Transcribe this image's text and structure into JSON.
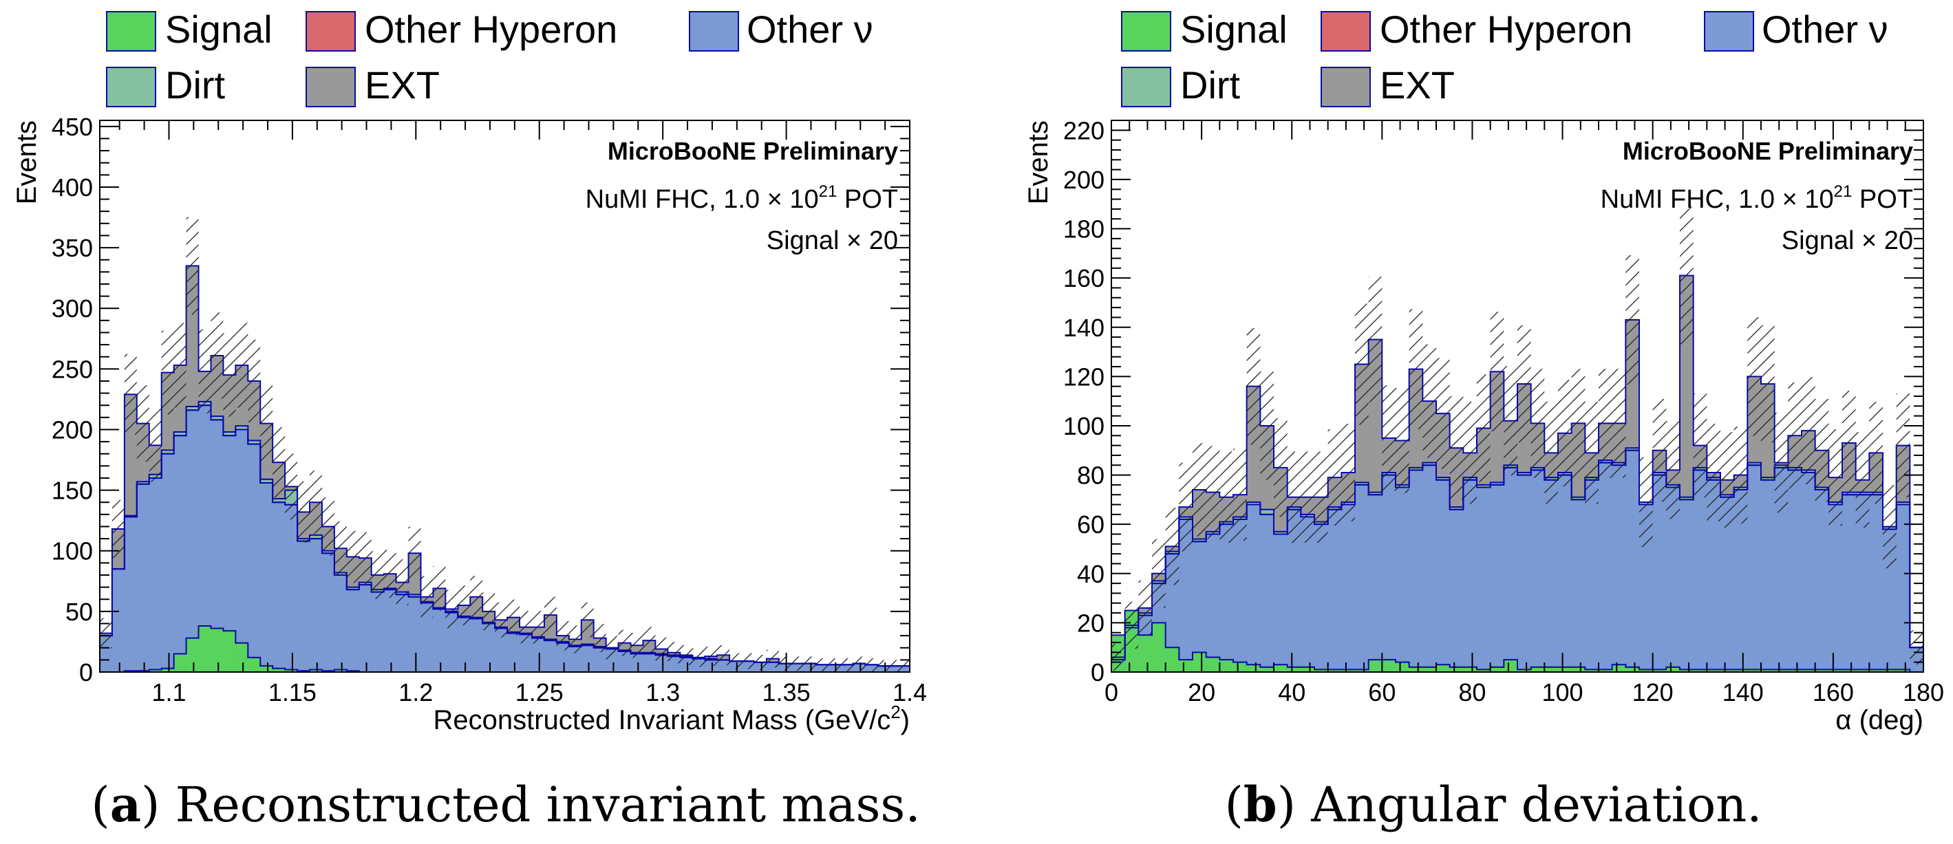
{
  "colors": {
    "signal": "#58d35c",
    "other_hyperon": "#d9696c",
    "other_nu": "#7b99d2",
    "dirt": "#86c0a2",
    "ext": "#999999",
    "outline": "#0a0aa8",
    "hatch": "#222222"
  },
  "chart_data": [
    {
      "id": "a",
      "type": "bar",
      "stacked": true,
      "title": "",
      "caption_letter": "a",
      "caption_text": "Reconstructed invariant mass.",
      "experiment_label": "MicroBooNE Preliminary",
      "beam_label_prefix": "NuMI FHC, 1.0 × 10",
      "beam_label_exp": "21",
      "beam_label_suffix": " POT",
      "scale_label": "Signal × 20",
      "xlabel_prefix": "Reconstructed Invariant Mass (GeV/c",
      "xlabel_exp": "2",
      "xlabel_suffix": ")",
      "ylabel": "Events",
      "xlim": [
        1.072,
        1.4
      ],
      "ylim": [
        0,
        455
      ],
      "x_ticks": [
        1.1,
        1.15,
        1.2,
        1.25,
        1.3,
        1.35,
        1.4
      ],
      "x_tick_labels": [
        "1.1",
        "1.15",
        "1.2",
        "1.25",
        "1.3",
        "1.35",
        "1.4"
      ],
      "y_ticks": [
        0,
        50,
        100,
        150,
        200,
        250,
        300,
        350,
        400,
        450
      ],
      "y_tick_labels": [
        "0",
        "50",
        "100",
        "150",
        "200",
        "250",
        "300",
        "350",
        "400",
        "450"
      ],
      "bin_edge_start": 1.072,
      "bin_width": 0.005,
      "legend": [
        "Signal",
        "Other Hyperon",
        "Other ν",
        "Dirt",
        "EXT"
      ],
      "series": [
        {
          "name": "Signal",
          "values": [
            0,
            0,
            1,
            1,
            2,
            3,
            15,
            28,
            38,
            36,
            34,
            24,
            12,
            5,
            3,
            2,
            1,
            2,
            1,
            2,
            1,
            0,
            0,
            0,
            0,
            0,
            0,
            0,
            0,
            0,
            0,
            0,
            0,
            0,
            0,
            0,
            0,
            0,
            0,
            0,
            0,
            0,
            0,
            0,
            0,
            0,
            0,
            0,
            0,
            0,
            0,
            0,
            0,
            0,
            0,
            0,
            0,
            0,
            0,
            0,
            0,
            0,
            0,
            0,
            0,
            0
          ]
        },
        {
          "name": "Other Hyperon",
          "values": [
            0,
            0,
            0,
            0,
            0,
            0,
            0,
            0,
            0,
            0,
            0,
            0,
            0,
            0,
            0,
            0,
            0,
            0,
            0,
            0,
            0,
            0,
            0,
            0,
            0,
            0,
            0,
            0,
            0,
            0,
            0,
            0,
            0,
            0,
            0,
            0,
            0,
            0,
            0,
            0,
            0,
            0,
            0,
            0,
            0,
            0,
            0,
            0,
            0,
            0,
            0,
            0,
            0,
            0,
            0,
            0,
            0,
            0,
            0,
            0,
            0,
            0,
            0,
            0,
            0,
            0
          ]
        },
        {
          "name": "Other ν",
          "values": [
            30,
            85,
            128,
            155,
            160,
            180,
            195,
            216,
            220,
            208,
            195,
            200,
            188,
            156,
            140,
            138,
            108,
            110,
            98,
            80,
            68,
            72,
            66,
            68,
            64,
            62,
            57,
            52,
            49,
            45,
            44,
            40,
            36,
            32,
            31,
            28,
            26,
            24,
            21,
            22,
            20,
            19,
            17,
            15,
            15,
            14,
            13,
            12,
            11,
            10,
            10,
            9,
            9,
            8,
            8,
            7,
            7,
            7,
            6,
            6,
            6,
            7,
            6,
            5,
            5,
            5
          ]
        },
        {
          "name": "Dirt",
          "values": [
            0,
            0,
            1,
            2,
            3,
            3,
            3,
            3,
            3,
            3,
            3,
            3,
            3,
            3,
            3,
            12,
            2,
            3,
            2,
            2,
            2,
            2,
            2,
            1,
            2,
            2,
            1,
            1,
            1,
            1,
            1,
            1,
            1,
            1,
            1,
            1,
            1,
            1,
            1,
            1,
            1,
            1,
            1,
            1,
            1,
            1,
            1,
            1,
            1,
            1,
            0,
            0,
            0,
            0,
            0,
            0,
            0,
            0,
            0,
            0,
            0,
            0,
            0,
            0,
            0,
            0
          ]
        },
        {
          "name": "EXT",
          "values": [
            2,
            33,
            100,
            48,
            24,
            64,
            55,
            116,
            25,
            50,
            47,
            50,
            49,
            46,
            30,
            3,
            22,
            27,
            20,
            20,
            25,
            20,
            12,
            12,
            8,
            34,
            4,
            16,
            2,
            9,
            17,
            9,
            6,
            12,
            5,
            8,
            20,
            5,
            5,
            20,
            7,
            0,
            6,
            6,
            10,
            4,
            2,
            1,
            0,
            2,
            4,
            0,
            0,
            0,
            3,
            0,
            0,
            0,
            0,
            0,
            0,
            0,
            0,
            0,
            0,
            0
          ]
        }
      ]
    },
    {
      "id": "b",
      "type": "bar",
      "stacked": true,
      "title": "",
      "caption_letter": "b",
      "caption_text": "Angular deviation.",
      "experiment_label": "MicroBooNE Preliminary",
      "beam_label_prefix": "NuMI FHC, 1.0 × 10",
      "beam_label_exp": "21",
      "beam_label_suffix": " POT",
      "scale_label": "Signal × 20",
      "xlabel": "α (deg)",
      "ylabel": "Events",
      "xlim": [
        0,
        180
      ],
      "ylim": [
        0,
        224
      ],
      "x_ticks": [
        0,
        20,
        40,
        60,
        80,
        100,
        120,
        140,
        160,
        180
      ],
      "x_tick_labels": [
        "0",
        "20",
        "40",
        "60",
        "80",
        "100",
        "120",
        "140",
        "160",
        "180"
      ],
      "y_ticks": [
        0,
        20,
        40,
        60,
        80,
        100,
        120,
        140,
        160,
        180,
        200,
        220
      ],
      "y_tick_labels": [
        "0",
        "20",
        "40",
        "60",
        "80",
        "100",
        "120",
        "140",
        "160",
        "180",
        "200",
        "220"
      ],
      "bin_edge_start": 0,
      "bin_width": 3,
      "legend": [
        "Signal",
        "Other Hyperon",
        "Other ν",
        "Dirt",
        "EXT"
      ],
      "series": [
        {
          "name": "Signal",
          "values": [
            15,
            25,
            15,
            20,
            10,
            5,
            8,
            6,
            5,
            4,
            3,
            2,
            3,
            2,
            2,
            1,
            1,
            1,
            1,
            5,
            5,
            4,
            2,
            2,
            3,
            2,
            2,
            1,
            2,
            5,
            1,
            2,
            2,
            2,
            2,
            1,
            1,
            3,
            2,
            1,
            1,
            2,
            1,
            1,
            1,
            1,
            1,
            1,
            1,
            1,
            1,
            1,
            1,
            1,
            1,
            1,
            1,
            1,
            1,
            0
          ]
        },
        {
          "name": "Other Hyperon",
          "values": [
            0,
            0,
            0,
            0,
            0,
            0,
            0,
            0,
            0,
            0,
            0,
            0,
            0,
            0,
            0,
            0,
            0,
            0,
            0,
            0,
            0,
            0,
            0,
            0,
            0,
            0,
            0,
            0,
            0,
            0,
            0,
            0,
            0,
            0,
            0,
            0,
            0,
            0,
            0,
            0,
            0,
            0,
            0,
            0,
            0,
            0,
            0,
            0,
            0,
            0,
            0,
            0,
            0,
            0,
            0,
            0,
            0,
            0,
            0,
            0
          ]
        },
        {
          "name": "Other ν",
          "values": [
            5,
            18,
            23,
            36,
            48,
            62,
            53,
            56,
            60,
            62,
            68,
            64,
            56,
            66,
            63,
            60,
            66,
            68,
            76,
            72,
            80,
            75,
            82,
            84,
            78,
            66,
            78,
            75,
            76,
            83,
            80,
            82,
            78,
            80,
            70,
            78,
            85,
            84,
            90,
            68,
            80,
            75,
            70,
            82,
            78,
            71,
            74,
            84,
            78,
            83,
            82,
            81,
            74,
            68,
            72,
            72,
            72,
            58,
            68,
            10
          ]
        },
        {
          "name": "Dirt",
          "values": [
            1,
            1,
            1,
            1,
            1,
            1,
            1,
            1,
            1,
            1,
            1,
            2,
            1,
            1,
            1,
            1,
            1,
            1,
            1,
            1,
            1,
            1,
            1,
            1,
            1,
            1,
            1,
            1,
            1,
            1,
            1,
            1,
            1,
            1,
            1,
            1,
            1,
            1,
            1,
            1,
            1,
            1,
            1,
            1,
            1,
            1,
            1,
            1,
            1,
            1,
            1,
            1,
            1,
            1,
            1,
            1,
            1,
            1,
            1,
            0
          ]
        },
        {
          "name": "EXT",
          "values": [
            0,
            0,
            2,
            3,
            2,
            4,
            20,
            16,
            10,
            9,
            47,
            34,
            26,
            4,
            7,
            10,
            12,
            12,
            48,
            62,
            14,
            18,
            40,
            25,
            26,
            24,
            10,
            23,
            45,
            18,
            36,
            18,
            10,
            16,
            30,
            10,
            15,
            16,
            52,
            0,
            9,
            6,
            90,
            9,
            2,
            6,
            5,
            35,
            38,
            1,
            13,
            16,
            15,
            10,
            20,
            5,
            16,
            0,
            23,
            0
          ]
        }
      ]
    }
  ]
}
